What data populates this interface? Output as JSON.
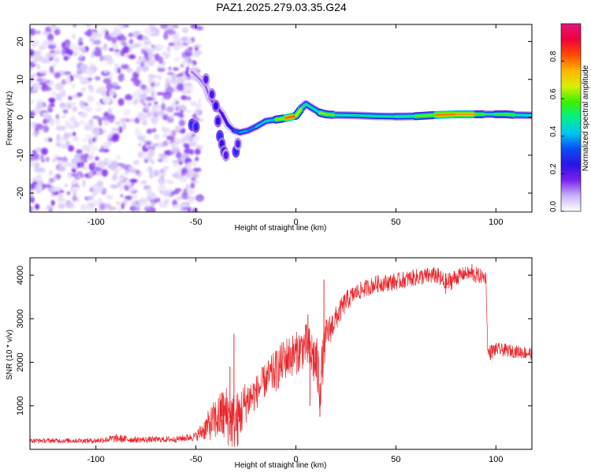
{
  "title": "PAZ1.2025.279.03.35.G24",
  "chart_data": [
    {
      "type": "heatmap",
      "name": "spectrogram",
      "xlabel": "Height of straight line (km)",
      "ylabel": "Frequency (Hz)",
      "xlim": [
        -133,
        118
      ],
      "ylim": [
        -25,
        24.5
      ],
      "xticks": [
        -100,
        -50,
        0,
        50,
        100
      ],
      "yticks": [
        -20,
        -10,
        0,
        10,
        20
      ],
      "colorbar": {
        "label": "Normalized spectral amplitude",
        "range": [
          0,
          1
        ],
        "ticks": [
          0.0,
          0.2,
          0.4,
          0.6,
          0.8
        ],
        "colors": [
          "#ffffff",
          "#c9b3f5",
          "#7a1ff0",
          "#2a14e8",
          "#0a4cf5",
          "#00c8f0",
          "#00f088",
          "#3cf000",
          "#d8f000",
          "#ffb400",
          "#ff4a00",
          "#f0003c",
          "#e0167e"
        ]
      },
      "noise_region_x": [
        -133,
        -48
      ],
      "ridge": [
        {
          "x": -52,
          "y": 12,
          "a": 0.12
        },
        {
          "x": -48,
          "y": 10,
          "a": 0.12
        },
        {
          "x": -45,
          "y": 8,
          "a": 0.12
        },
        {
          "x": -43,
          "y": 5,
          "a": 0.15
        },
        {
          "x": -40,
          "y": 3,
          "a": 0.2
        },
        {
          "x": -37,
          "y": 1,
          "a": 0.22
        },
        {
          "x": -34,
          "y": -2,
          "a": 0.25
        },
        {
          "x": -31,
          "y": -3.5,
          "a": 0.3
        },
        {
          "x": -28,
          "y": -4,
          "a": 0.4
        },
        {
          "x": -24,
          "y": -3.5,
          "a": 0.4
        },
        {
          "x": -20,
          "y": -2.5,
          "a": 0.35
        },
        {
          "x": -15,
          "y": -1,
          "a": 0.5
        },
        {
          "x": -10,
          "y": -0.6,
          "a": 0.4
        },
        {
          "x": -5,
          "y": -0.2,
          "a": 0.85
        },
        {
          "x": 0,
          "y": 0.4,
          "a": 0.8
        },
        {
          "x": 3,
          "y": 2.5,
          "a": 0.5
        },
        {
          "x": 5,
          "y": 3.5,
          "a": 0.5
        },
        {
          "x": 8,
          "y": 2.5,
          "a": 0.45
        },
        {
          "x": 12,
          "y": 1.2,
          "a": 0.5
        },
        {
          "x": 15,
          "y": 0.8,
          "a": 0.75
        },
        {
          "x": 20,
          "y": 0.6,
          "a": 0.45
        },
        {
          "x": 30,
          "y": 0.5,
          "a": 0.5
        },
        {
          "x": 40,
          "y": 0.3,
          "a": 0.45
        },
        {
          "x": 50,
          "y": 0.2,
          "a": 0.5
        },
        {
          "x": 60,
          "y": 0.3,
          "a": 0.5
        },
        {
          "x": 70,
          "y": 0.6,
          "a": 0.7
        },
        {
          "x": 80,
          "y": 0.8,
          "a": 0.9
        },
        {
          "x": 90,
          "y": 0.8,
          "a": 0.65
        },
        {
          "x": 95,
          "y": 0.8,
          "a": 0.5
        },
        {
          "x": 100,
          "y": 0.8,
          "a": 0.45
        },
        {
          "x": 105,
          "y": 0.8,
          "a": 0.65
        },
        {
          "x": 110,
          "y": 0.6,
          "a": 0.5
        },
        {
          "x": 118,
          "y": 0.5,
          "a": 0.45
        }
      ],
      "streaks": [
        {
          "x": -45,
          "y": 10,
          "a": 0.2
        },
        {
          "x": -42,
          "y": 6,
          "a": 0.22
        },
        {
          "x": -40,
          "y": 3,
          "a": 0.25
        },
        {
          "x": -39,
          "y": -1,
          "a": 0.25
        },
        {
          "x": -38,
          "y": -5,
          "a": 0.3
        },
        {
          "x": -37,
          "y": -7,
          "a": 0.25
        },
        {
          "x": -36,
          "y": -9,
          "a": 0.25
        },
        {
          "x": -35,
          "y": -10,
          "a": 0.2
        },
        {
          "x": -30,
          "y": -9,
          "a": 0.3
        },
        {
          "x": -29,
          "y": -7,
          "a": 0.2
        },
        {
          "x": -52,
          "y": -2,
          "a": 0.3
        },
        {
          "x": -50,
          "y": -2.5,
          "a": 0.28
        }
      ]
    },
    {
      "type": "line",
      "name": "snr",
      "xlabel": "Height of straight line (km)",
      "ylabel": "SNR (10 * v/v)",
      "xlim": [
        -133,
        118
      ],
      "ylim": [
        0,
        4400
      ],
      "xticks": [
        -100,
        -50,
        0,
        50,
        100
      ],
      "yticks": [
        1000,
        2000,
        3000,
        4000
      ],
      "color": "#e8262b",
      "envelope": [
        {
          "x": -133,
          "mean": 200,
          "noise": 50
        },
        {
          "x": -100,
          "mean": 200,
          "noise": 60
        },
        {
          "x": -90,
          "mean": 250,
          "noise": 100
        },
        {
          "x": -80,
          "mean": 220,
          "noise": 70
        },
        {
          "x": -60,
          "mean": 230,
          "noise": 70
        },
        {
          "x": -50,
          "mean": 300,
          "noise": 100
        },
        {
          "x": -45,
          "mean": 500,
          "noise": 300
        },
        {
          "x": -40,
          "mean": 700,
          "noise": 500
        },
        {
          "x": -35,
          "mean": 800,
          "noise": 700
        },
        {
          "x": -30,
          "mean": 600,
          "noise": 700
        },
        {
          "x": -25,
          "mean": 1100,
          "noise": 500
        },
        {
          "x": -20,
          "mean": 1300,
          "noise": 400
        },
        {
          "x": -15,
          "mean": 1600,
          "noise": 400
        },
        {
          "x": -10,
          "mean": 1800,
          "noise": 500
        },
        {
          "x": -5,
          "mean": 2100,
          "noise": 500
        },
        {
          "x": 0,
          "mean": 2200,
          "noise": 500
        },
        {
          "x": 5,
          "mean": 2400,
          "noise": 500
        },
        {
          "x": 10,
          "mean": 2000,
          "noise": 700
        },
        {
          "x": 12,
          "mean": 1500,
          "noise": 700
        },
        {
          "x": 15,
          "mean": 2600,
          "noise": 400
        },
        {
          "x": 20,
          "mean": 3000,
          "noise": 300
        },
        {
          "x": 25,
          "mean": 3400,
          "noise": 250
        },
        {
          "x": 30,
          "mean": 3600,
          "noise": 200
        },
        {
          "x": 40,
          "mean": 3800,
          "noise": 200
        },
        {
          "x": 50,
          "mean": 3850,
          "noise": 200
        },
        {
          "x": 60,
          "mean": 3950,
          "noise": 200
        },
        {
          "x": 70,
          "mean": 4000,
          "noise": 200
        },
        {
          "x": 75,
          "mean": 3800,
          "noise": 250
        },
        {
          "x": 80,
          "mean": 3950,
          "noise": 200
        },
        {
          "x": 85,
          "mean": 4050,
          "noise": 150
        },
        {
          "x": 90,
          "mean": 4000,
          "noise": 200
        },
        {
          "x": 95,
          "mean": 3950,
          "noise": 150
        },
        {
          "x": 96,
          "mean": 2200,
          "noise": 200
        },
        {
          "x": 100,
          "mean": 2300,
          "noise": 150
        },
        {
          "x": 110,
          "mean": 2250,
          "noise": 150
        },
        {
          "x": 118,
          "mean": 2200,
          "noise": 150
        }
      ],
      "spikes": [
        {
          "x": -37,
          "y": 1300
        },
        {
          "x": -33,
          "y": 1900
        },
        {
          "x": -31,
          "y": 2650
        },
        {
          "x": -29,
          "y": 100
        },
        {
          "x": 6,
          "y": 3100
        },
        {
          "x": 7,
          "y": 1000
        },
        {
          "x": 12,
          "y": 750
        },
        {
          "x": 14,
          "y": 3900
        },
        {
          "x": 88,
          "y": 4250
        }
      ]
    }
  ]
}
